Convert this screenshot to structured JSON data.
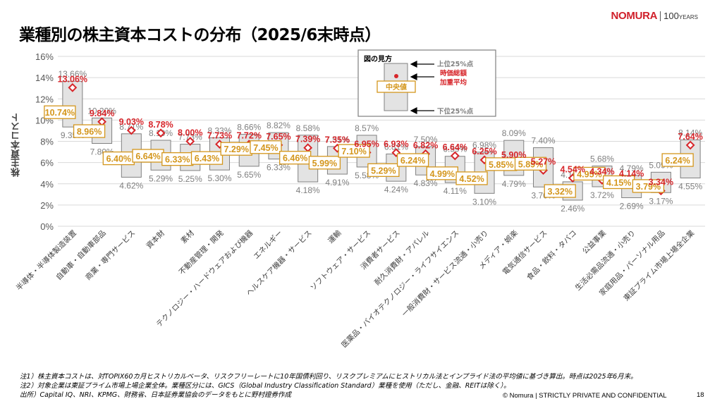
{
  "page": {
    "title": "業種別の株主資本コストの分布（2025/6末時点）",
    "logo_brand": "NOMURA",
    "logo_years": "100",
    "logo_years_suffix": "YEARS",
    "notes": [
      "注1）株主資本コストは、対TOPIX60カ月ヒストリカルベータ、リスクフリーレートに10年国債利回り、リスクプレミアムにヒストリカル法とインプライド法の平均値に基づき算出。時点は2025年6月末。",
      "注2）対象企業は東証プライム市場上場企業全体。業種区分には、GICS（Global Industry Classification Standard）業種を使用（ただし、金融、REITは除く）。",
      "出所）Capital IQ、NRI、KPMG、財務省、日本証券業協会のデータをもとに野村證券作成"
    ],
    "footer": "© Nomura | STRICTLY PRIVATE AND CONFIDENTIAL",
    "page_number": "18"
  },
  "legend_box": {
    "title": "図の見方",
    "upper": "上位25%点",
    "mean_line1": "時価総額",
    "mean_line2": "加重平均",
    "median": "中央値",
    "lower": "下位25%点"
  },
  "colors": {
    "box_fill": "#e3e3e3",
    "box_stroke": "#808080",
    "grid": "#d9d9d9",
    "quartile_text": "#7f7f7f",
    "mean": "#d7262b",
    "median": "#d4961c",
    "axis_text": "#595959"
  },
  "chart_data": {
    "type": "box",
    "title": "業種別の株主資本コストの分布（2025/6末時点）",
    "ylabel": "株主資本コスト",
    "xlabel": "",
    "ylim": [
      0,
      16
    ],
    "yticks": [
      "0%",
      "2%",
      "4%",
      "6%",
      "8%",
      "10%",
      "12%",
      "14%",
      "16%"
    ],
    "grid": true,
    "categories": [
      "半導体・半導体製造装置",
      "自動車・自動車部品",
      "商業・専門サービス",
      "資本財",
      "素材",
      "不動産管理・開発",
      "テクノロジー・ハードウェアおよび機器",
      "エネルギー",
      "ヘルスケア機器・サービス",
      "運輸",
      "ソフトウェア・サービス",
      "消費者サービス",
      "耐久消費財・アパレル",
      "医薬品・バイオテクノロジー・ライフサイエンス",
      "一般消費財・サービス流通・小売り",
      "メディア・娯楽",
      "電気通信サービス",
      "食品・飲料・タバコ",
      "公益事業",
      "生活必需品流通・小売り",
      "家庭用品・パーソナル用品",
      "東証プライム市場上場全企業"
    ],
    "series": [
      {
        "name": "上位25%点",
        "values": [
          13.66,
          10.2,
          8.71,
          8.1,
          7.73,
          8.33,
          8.66,
          8.82,
          8.58,
          7.51,
          8.57,
          6.81,
          7.5,
          6.59,
          6.98,
          8.09,
          7.4,
          4.19,
          5.68,
          4.79,
          5.09,
          8.14
        ],
        "labels": [
          "13.66%",
          "10.20%",
          "8.71%",
          "8.10%",
          "7.73%",
          "8.33%",
          "8.66%",
          "8.82%",
          "8.58%",
          "7.51%",
          "8.57%",
          "6.81%",
          "7.50%",
          "6.59%",
          "6.98%",
          "8.09%",
          "7.40%",
          "4.19%",
          "5.68%",
          "4.79%",
          "5.09%",
          "8.14%"
        ]
      },
      {
        "name": "時価総額加重平均",
        "values": [
          13.06,
          9.84,
          9.03,
          8.78,
          8.0,
          7.73,
          7.72,
          7.65,
          7.39,
          7.35,
          6.95,
          6.93,
          6.82,
          6.64,
          6.25,
          5.9,
          5.27,
          4.54,
          4.34,
          4.14,
          3.34,
          7.64
        ],
        "labels": [
          "13.06%",
          "9.84%",
          "9.03%",
          "8.78%",
          "8.00%",
          "7.73%",
          "7.72%",
          "7.65%",
          "7.39%",
          "7.35%",
          "6.95%",
          "6.93%",
          "6.82%",
          "6.64%",
          "6.25%",
          "5.90%",
          "5.27%",
          "4.54%",
          "4.34%",
          "4.14%",
          "3.34%",
          "7.64%"
        ]
      },
      {
        "name": "中央値",
        "values": [
          10.74,
          8.96,
          6.4,
          6.64,
          6.33,
          6.43,
          7.29,
          7.45,
          6.46,
          5.99,
          7.1,
          5.29,
          6.24,
          4.99,
          4.52,
          5.85,
          5.89,
          3.32,
          4.95,
          4.15,
          3.79,
          6.24
        ],
        "labels": [
          "10.74%",
          "8.96%",
          "6.40%",
          "6.64%",
          "6.33%",
          "6.43%",
          "7.29%",
          "7.45%",
          "6.46%",
          "5.99%",
          "7.10%",
          "5.29%",
          "6.24%",
          "4.99%",
          "4.52%",
          "5.85%",
          "5.89%",
          "3.32%",
          "4.95%",
          "4.15%",
          "3.79%",
          "6.24%"
        ]
      },
      {
        "name": "下位25%点",
        "values": [
          9.35,
          7.8,
          4.62,
          5.29,
          5.25,
          5.3,
          5.65,
          6.33,
          4.18,
          4.91,
          5.58,
          4.24,
          4.83,
          4.11,
          3.1,
          4.79,
          3.7,
          2.46,
          3.72,
          2.69,
          3.17,
          4.55
        ],
        "labels": [
          "9.35%",
          "7.80%",
          "4.62%",
          "5.29%",
          "5.25%",
          "5.30%",
          "5.65%",
          "6.33%",
          "4.18%",
          "4.91%",
          "5.58%",
          "4.24%",
          "4.83%",
          "4.11%",
          "3.10%",
          "4.79%",
          "3.70%",
          "2.46%",
          "3.72%",
          "2.69%",
          "3.17%",
          "4.55%"
        ]
      }
    ],
    "legend": "top-center"
  }
}
